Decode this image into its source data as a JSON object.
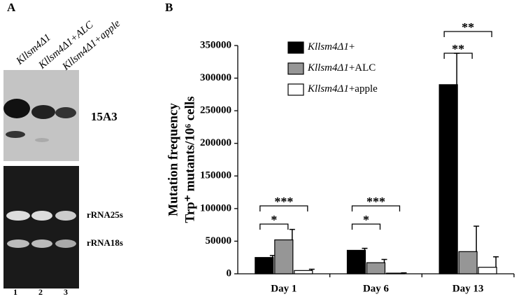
{
  "panel_a": {
    "label": "A",
    "lanes": [
      "Kllsm4Δ1",
      "Kllsm4Δ1+ALC",
      "Kllsm4Δ1+apple"
    ],
    "lane_numbers": [
      "1",
      "2",
      "3"
    ],
    "probe": "15A3",
    "rrna_labels": [
      "rRNA25s",
      "rRNA18s"
    ]
  },
  "chart_data": {
    "type": "bar",
    "label": "B",
    "y_label": [
      "Mutation frequency",
      "Trp⁺ mutants/10⁶ cells"
    ],
    "categories": [
      "Day 1",
      "Day 6",
      "Day 13"
    ],
    "series": [
      {
        "name": "Kllsm4Δ1+",
        "color": "#000000",
        "values": [
          25000,
          36000,
          290000
        ],
        "errors": [
          3000,
          3000,
          48000
        ]
      },
      {
        "name": "Kllsm4Δ1+ALC",
        "color": "#969696",
        "values": [
          52000,
          17000,
          34000
        ],
        "errors": [
          16000,
          5000,
          39000
        ]
      },
      {
        "name": "Kllsm4Δ1+apple",
        "color": "#ffffff",
        "values": [
          5000,
          1000,
          10000
        ],
        "errors": [
          2000,
          500,
          16000
        ]
      }
    ],
    "annotations": [
      "*",
      "***",
      "*",
      "***",
      "**",
      "**"
    ],
    "ylim": [
      0,
      350000
    ],
    "yticks": [
      0,
      50000,
      100000,
      150000,
      200000,
      250000,
      300000,
      350000
    ]
  }
}
